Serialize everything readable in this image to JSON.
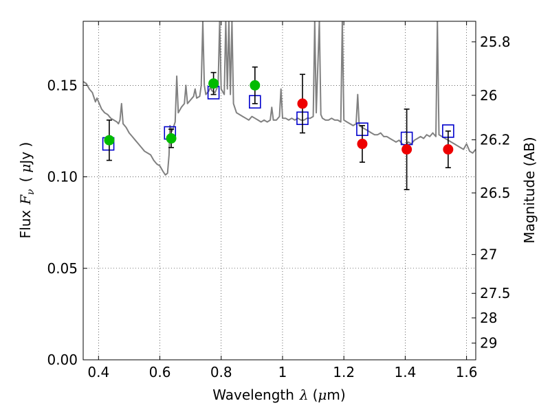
{
  "chart_data": {
    "type": "scatter",
    "xlabel": {
      "text": "Wavelength",
      "math": "λ",
      "unit_open": "(",
      "unit_mu": "μ",
      "unit_rest": "m)"
    },
    "ylabel": {
      "text": "Flux",
      "math": "F",
      "math_sub": "ν",
      "unit_open": "(",
      "unit_mu": "μ",
      "unit_rest": "Jy )"
    },
    "y2label": "Magnitude (AB)",
    "xlim": [
      0.35,
      1.63
    ],
    "ylim": [
      0.0,
      0.185
    ],
    "grid": true,
    "x_ticks": [
      {
        "value": 0.4,
        "label": "0.4"
      },
      {
        "value": 0.6,
        "label": "0.6"
      },
      {
        "value": 0.8,
        "label": "0.8"
      },
      {
        "value": 1.0,
        "label": "1"
      },
      {
        "value": 1.2,
        "label": "1.2"
      },
      {
        "value": 1.4,
        "label": "1.4"
      },
      {
        "value": 1.6,
        "label": "1.6"
      }
    ],
    "y_ticks": [
      {
        "value": 0.0,
        "label": "0.00"
      },
      {
        "value": 0.05,
        "label": "0.05"
      },
      {
        "value": 0.1,
        "label": "0.10"
      },
      {
        "value": 0.15,
        "label": "0.15"
      }
    ],
    "y2_ticks": [
      {
        "value": 25.8,
        "label": "25.8"
      },
      {
        "value": 26.0,
        "label": "26"
      },
      {
        "value": 26.2,
        "label": "26.2"
      },
      {
        "value": 26.5,
        "label": "26.5"
      },
      {
        "value": 27.0,
        "label": "27"
      },
      {
        "value": 27.5,
        "label": "27.5"
      },
      {
        "value": 28.0,
        "label": "28"
      },
      {
        "value": 29.0,
        "label": "29"
      }
    ],
    "model_spectrum": {
      "color": "#808080",
      "points": [
        [
          0.35,
          0.152
        ],
        [
          0.36,
          0.151
        ],
        [
          0.37,
          0.148
        ],
        [
          0.38,
          0.146
        ],
        [
          0.39,
          0.141
        ],
        [
          0.395,
          0.143
        ],
        [
          0.4,
          0.141
        ],
        [
          0.41,
          0.137
        ],
        [
          0.42,
          0.135
        ],
        [
          0.43,
          0.134
        ],
        [
          0.44,
          0.132
        ],
        [
          0.45,
          0.131
        ],
        [
          0.46,
          0.13
        ],
        [
          0.465,
          0.129
        ],
        [
          0.47,
          0.131
        ],
        [
          0.475,
          0.14
        ],
        [
          0.48,
          0.129
        ],
        [
          0.49,
          0.127
        ],
        [
          0.5,
          0.124
        ],
        [
          0.51,
          0.122
        ],
        [
          0.52,
          0.12
        ],
        [
          0.53,
          0.118
        ],
        [
          0.54,
          0.116
        ],
        [
          0.55,
          0.114
        ],
        [
          0.56,
          0.113
        ],
        [
          0.57,
          0.112
        ],
        [
          0.58,
          0.109
        ],
        [
          0.59,
          0.107
        ],
        [
          0.6,
          0.106
        ],
        [
          0.61,
          0.103
        ],
        [
          0.618,
          0.101
        ],
        [
          0.625,
          0.102
        ],
        [
          0.63,
          0.112
        ],
        [
          0.633,
          0.128
        ],
        [
          0.64,
          0.125
        ],
        [
          0.65,
          0.13
        ],
        [
          0.655,
          0.155
        ],
        [
          0.66,
          0.135
        ],
        [
          0.67,
          0.138
        ],
        [
          0.68,
          0.14
        ],
        [
          0.685,
          0.15
        ],
        [
          0.69,
          0.14
        ],
        [
          0.7,
          0.142
        ],
        [
          0.71,
          0.144
        ],
        [
          0.715,
          0.148
        ],
        [
          0.72,
          0.143
        ],
        [
          0.73,
          0.144
        ],
        [
          0.735,
          0.15
        ],
        [
          0.74,
          0.185
        ],
        [
          0.745,
          0.15
        ],
        [
          0.75,
          0.145
        ],
        [
          0.76,
          0.147
        ],
        [
          0.765,
          0.149
        ],
        [
          0.77,
          0.147
        ],
        [
          0.78,
          0.146
        ],
        [
          0.79,
          0.15
        ],
        [
          0.795,
          0.185
        ],
        [
          0.8,
          0.148
        ],
        [
          0.81,
          0.145
        ],
        [
          0.815,
          0.185
        ],
        [
          0.82,
          0.148
        ],
        [
          0.825,
          0.185
        ],
        [
          0.83,
          0.145
        ],
        [
          0.835,
          0.185
        ],
        [
          0.84,
          0.14
        ],
        [
          0.85,
          0.135
        ],
        [
          0.86,
          0.134
        ],
        [
          0.87,
          0.133
        ],
        [
          0.88,
          0.132
        ],
        [
          0.89,
          0.131
        ],
        [
          0.9,
          0.133
        ],
        [
          0.91,
          0.132
        ],
        [
          0.92,
          0.131
        ],
        [
          0.93,
          0.13
        ],
        [
          0.94,
          0.131
        ],
        [
          0.95,
          0.13
        ],
        [
          0.96,
          0.131
        ],
        [
          0.965,
          0.138
        ],
        [
          0.97,
          0.131
        ],
        [
          0.98,
          0.131
        ],
        [
          0.99,
          0.133
        ],
        [
          0.995,
          0.148
        ],
        [
          1.0,
          0.132
        ],
        [
          1.01,
          0.132
        ],
        [
          1.02,
          0.131
        ],
        [
          1.03,
          0.132
        ],
        [
          1.04,
          0.131
        ],
        [
          1.05,
          0.132
        ],
        [
          1.06,
          0.131
        ],
        [
          1.07,
          0.131
        ],
        [
          1.08,
          0.132
        ],
        [
          1.09,
          0.132
        ],
        [
          1.1,
          0.133
        ],
        [
          1.105,
          0.185
        ],
        [
          1.11,
          0.135
        ],
        [
          1.12,
          0.185
        ],
        [
          1.125,
          0.134
        ],
        [
          1.13,
          0.132
        ],
        [
          1.14,
          0.131
        ],
        [
          1.15,
          0.131
        ],
        [
          1.16,
          0.132
        ],
        [
          1.17,
          0.131
        ],
        [
          1.18,
          0.131
        ],
        [
          1.19,
          0.13
        ],
        [
          1.195,
          0.185
        ],
        [
          1.2,
          0.131
        ],
        [
          1.21,
          0.13
        ],
        [
          1.22,
          0.129
        ],
        [
          1.23,
          0.128
        ],
        [
          1.24,
          0.129
        ],
        [
          1.245,
          0.145
        ],
        [
          1.25,
          0.128
        ],
        [
          1.26,
          0.127
        ],
        [
          1.27,
          0.126
        ],
        [
          1.28,
          0.125
        ],
        [
          1.29,
          0.124
        ],
        [
          1.3,
          0.123
        ],
        [
          1.31,
          0.123
        ],
        [
          1.32,
          0.124
        ],
        [
          1.33,
          0.122
        ],
        [
          1.34,
          0.122
        ],
        [
          1.35,
          0.121
        ],
        [
          1.36,
          0.12
        ],
        [
          1.37,
          0.119
        ],
        [
          1.38,
          0.12
        ],
        [
          1.39,
          0.118
        ],
        [
          1.4,
          0.117
        ],
        [
          1.41,
          0.119
        ],
        [
          1.42,
          0.118
        ],
        [
          1.43,
          0.12
        ],
        [
          1.44,
          0.121
        ],
        [
          1.45,
          0.122
        ],
        [
          1.46,
          0.121
        ],
        [
          1.47,
          0.123
        ],
        [
          1.48,
          0.122
        ],
        [
          1.49,
          0.124
        ],
        [
          1.5,
          0.122
        ],
        [
          1.505,
          0.185
        ],
        [
          1.51,
          0.123
        ],
        [
          1.52,
          0.122
        ],
        [
          1.53,
          0.121
        ],
        [
          1.54,
          0.12
        ],
        [
          1.55,
          0.119
        ],
        [
          1.56,
          0.118
        ],
        [
          1.57,
          0.117
        ],
        [
          1.58,
          0.116
        ],
        [
          1.59,
          0.115
        ],
        [
          1.6,
          0.118
        ],
        [
          1.61,
          0.114
        ],
        [
          1.62,
          0.113
        ],
        [
          1.63,
          0.115
        ]
      ]
    },
    "model_photometry": {
      "marker": "open-square",
      "color": "#0000cc",
      "points": [
        [
          0.432,
          0.118
        ],
        [
          0.633,
          0.124
        ],
        [
          0.775,
          0.146
        ],
        [
          0.91,
          0.141
        ],
        [
          1.065,
          0.132
        ],
        [
          1.26,
          0.126
        ],
        [
          1.405,
          0.121
        ],
        [
          1.54,
          0.125
        ]
      ]
    },
    "observed_photometry": {
      "marker": "filled-circle",
      "errorbar_color": "#000000",
      "points": [
        {
          "x": 0.435,
          "y": 0.12,
          "err": 0.011,
          "color": "#00bb00"
        },
        {
          "x": 0.637,
          "y": 0.121,
          "err": 0.005,
          "color": "#00bb00"
        },
        {
          "x": 0.775,
          "y": 0.151,
          "err": 0.006,
          "color": "#00bb00"
        },
        {
          "x": 0.91,
          "y": 0.15,
          "err": 0.01,
          "color": "#00bb00"
        },
        {
          "x": 1.065,
          "y": 0.14,
          "err": 0.016,
          "color": "#ee0000"
        },
        {
          "x": 1.26,
          "y": 0.118,
          "err": 0.01,
          "color": "#ee0000"
        },
        {
          "x": 1.405,
          "y": 0.115,
          "err": 0.022,
          "color": "#ee0000"
        },
        {
          "x": 1.54,
          "y": 0.115,
          "err": 0.01,
          "color": "#ee0000"
        }
      ]
    }
  }
}
